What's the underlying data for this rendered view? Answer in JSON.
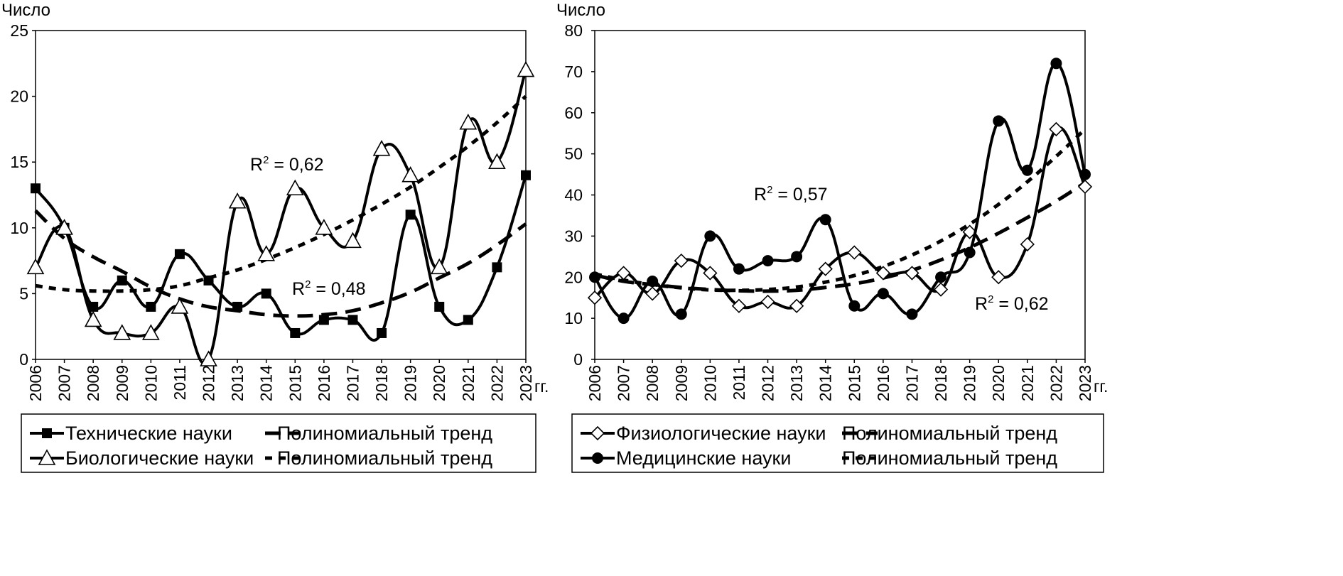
{
  "chart_data": [
    {
      "type": "line",
      "ylabel": "Число",
      "xunit": "гг.",
      "ylim": [
        0,
        25
      ],
      "yticks": [
        0,
        5,
        10,
        15,
        20,
        25
      ],
      "x": [
        "2006",
        "2007",
        "2008",
        "2009",
        "2010",
        "2011",
        "2012",
        "2013",
        "2014",
        "2015",
        "2016",
        "2017",
        "2018",
        "2019",
        "2020",
        "2021",
        "2022",
        "2023"
      ],
      "series": [
        {
          "name": "Технические науки",
          "marker": "square",
          "values": [
            13,
            10,
            4,
            6,
            4,
            8,
            6,
            4,
            5,
            2,
            3,
            3,
            2,
            11,
            4,
            3,
            7,
            14
          ]
        },
        {
          "name": "Биологические науки",
          "marker": "triangle",
          "values": [
            7,
            10,
            3,
            2,
            2,
            4,
            0,
            12,
            8,
            13,
            10,
            9,
            16,
            14,
            7,
            18,
            15,
            22
          ]
        }
      ],
      "trends": [
        {
          "name": "Полиномиальный тренд",
          "of": "Технические науки",
          "style": "long-dash",
          "values": [
            11.3,
            9.2,
            7.8,
            6.7,
            5.5,
            4.6,
            4.0,
            3.7,
            3.4,
            3.3,
            3.4,
            3.7,
            4.3,
            5.1,
            6.2,
            7.3,
            8.7,
            10.3
          ]
        },
        {
          "name": "Полиномиальный тренд",
          "of": "Биологические науки",
          "style": "short-dash",
          "values": [
            5.6,
            5.3,
            5.2,
            5.2,
            5.3,
            5.6,
            6.2,
            6.8,
            7.6,
            8.5,
            9.5,
            10.6,
            11.8,
            13.1,
            14.6,
            16.2,
            18.0,
            20.0
          ]
        }
      ],
      "annotations": [
        {
          "label": "R",
          "sup": "2",
          "rest": " = 0,62"
        },
        {
          "label": "R",
          "sup": "2",
          "rest": " = 0,48"
        }
      ]
    },
    {
      "type": "line",
      "ylabel": "Число",
      "xunit": "гг.",
      "ylim": [
        0,
        80
      ],
      "yticks": [
        0,
        10,
        20,
        30,
        40,
        50,
        60,
        70,
        80
      ],
      "x": [
        "2006",
        "2007",
        "2008",
        "2009",
        "2010",
        "2011",
        "2012",
        "2013",
        "2014",
        "2015",
        "2016",
        "2017",
        "2018",
        "2019",
        "2020",
        "2021",
        "2022",
        "2023"
      ],
      "series": [
        {
          "name": "Физиологические науки",
          "marker": "diamond",
          "values": [
            15,
            21,
            16,
            24,
            21,
            13,
            14,
            13,
            22,
            26,
            21,
            21,
            17,
            31,
            20,
            28,
            56,
            42
          ]
        },
        {
          "name": "Медицинские науки",
          "marker": "circle",
          "values": [
            20,
            10,
            19,
            11,
            30,
            22,
            24,
            25,
            34,
            13,
            16,
            11,
            20,
            26,
            58,
            46,
            72,
            45
          ]
        }
      ],
      "trends": [
        {
          "name": "Полиномиальный тренд",
          "of": "Физиологические науки",
          "style": "long-dash",
          "values": [
            20.5,
            19.0,
            18.2,
            17.5,
            17.0,
            16.7,
            16.6,
            16.8,
            17.5,
            18.4,
            19.8,
            21.7,
            24.2,
            27.2,
            30.7,
            34.5,
            38.5,
            43.0
          ]
        },
        {
          "name": "Полиномиальный тренд",
          "of": "Медицинские науки",
          "style": "short-dash",
          "values": [
            20.8,
            19.3,
            18.2,
            17.4,
            16.9,
            16.8,
            17.0,
            17.6,
            18.8,
            20.4,
            22.6,
            25.4,
            28.8,
            32.9,
            37.7,
            43.2,
            49.4,
            56.0
          ]
        }
      ],
      "annotations": [
        {
          "label": "R",
          "sup": "2",
          "rest": " = 0,57"
        },
        {
          "label": "R",
          "sup": "2",
          "rest": " = 0,62"
        }
      ]
    }
  ]
}
